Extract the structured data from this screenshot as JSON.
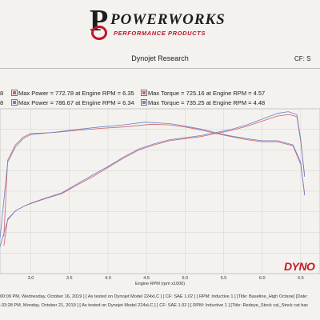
{
  "logo": {
    "wordmark": "POWERWORKS",
    "tagline": "PERFORMANCE PRODUCTS"
  },
  "header": {
    "title": "Dynojet Research",
    "cf": "CF: S"
  },
  "legend": [
    {
      "prefix": "8",
      "power_text": "Max Power = 772.78 at Engine RPM = 6.35",
      "torque_text": "Max Torque = 725.16 at Engine RPM = 4.57",
      "color": "#d0606a"
    },
    {
      "prefix": "8",
      "power_text": "Max Power = 786.67 at Engine RPM = 6.34",
      "torque_text": "Max Torque = 735.25 at Engine RPM = 4.48",
      "color": "#6a82c8"
    }
  ],
  "watermark": "DYNO",
  "footer": [
    "00:09 PM, Wednesday, October 16, 2019 ] [ As tested on Dynojet Model 224xLC ] [ CF: SAE 1.02 ] [ RPM: Inductive 1 ] [Title: Baseline_High Octane]  [Date:",
    "-33:28 PM, Monday, October 21, 2019 ] [ As tested on Dynojet Model 224xLC ] [ CF: SAE 1.02 ] [ RPM: Inductive 1 ] [Title: Redeye_Stock cal_Stock cat bac"
  ],
  "chart_data": {
    "type": "line",
    "xlabel": "Engine RPM (rpm x1000)",
    "ylabel": "",
    "xlim": [
      2.6,
      6.75
    ],
    "ylim": [
      0,
      800
    ],
    "x_ticks": [
      "3.0",
      "3.5",
      "4.0",
      "4.5",
      "5.0",
      "5.5",
      "6.0",
      "6.5"
    ],
    "grid": true,
    "series": [
      {
        "color": "#d0606a",
        "kind": "power",
        "x": [
          2.65,
          2.7,
          2.8,
          2.9,
          3.0,
          3.2,
          3.4,
          3.6,
          3.8,
          4.0,
          4.2,
          4.4,
          4.6,
          4.8,
          5.0,
          5.2,
          5.4,
          5.6,
          5.8,
          6.0,
          6.2,
          6.35,
          6.45,
          6.5,
          6.55
        ],
        "y": [
          135,
          265,
          305,
          325,
          340,
          365,
          388,
          430,
          470,
          515,
          560,
          600,
          625,
          645,
          655,
          665,
          680,
          695,
          715,
          740,
          765,
          772,
          762,
          640,
          480
        ]
      },
      {
        "color": "#d0606a",
        "kind": "torque",
        "x": [
          2.65,
          2.7,
          2.8,
          2.9,
          3.0,
          3.3,
          3.6,
          3.9,
          4.2,
          4.57,
          4.8,
          5.0,
          5.2,
          5.4,
          5.6,
          5.8,
          6.0,
          6.2,
          6.4,
          6.5,
          6.55
        ],
        "y": [
          180,
          550,
          625,
          662,
          680,
          685,
          695,
          705,
          712,
          725,
          722,
          712,
          698,
          680,
          665,
          650,
          640,
          640,
          620,
          530,
          390
        ]
      },
      {
        "color": "#6a82c8",
        "kind": "power",
        "x": [
          2.6,
          2.7,
          2.8,
          2.9,
          3.0,
          3.2,
          3.4,
          3.6,
          3.8,
          4.0,
          4.2,
          4.4,
          4.6,
          4.8,
          5.0,
          5.2,
          5.4,
          5.6,
          5.8,
          6.0,
          6.2,
          6.34,
          6.45,
          6.5,
          6.55
        ],
        "y": [
          130,
          260,
          305,
          325,
          342,
          368,
          392,
          435,
          478,
          520,
          565,
          605,
          630,
          650,
          660,
          670,
          685,
          700,
          722,
          750,
          778,
          786,
          772,
          650,
          470
        ]
      },
      {
        "color": "#6a82c8",
        "kind": "torque",
        "x": [
          2.6,
          2.7,
          2.8,
          2.9,
          3.0,
          3.3,
          3.6,
          3.9,
          4.2,
          4.48,
          4.8,
          5.0,
          5.2,
          5.4,
          5.6,
          5.8,
          6.0,
          6.2,
          6.4,
          6.5,
          6.55
        ],
        "y": [
          170,
          540,
          615,
          655,
          675,
          686,
          700,
          712,
          722,
          735,
          728,
          716,
          702,
          684,
          668,
          655,
          645,
          645,
          625,
          540,
          380
        ]
      }
    ]
  }
}
